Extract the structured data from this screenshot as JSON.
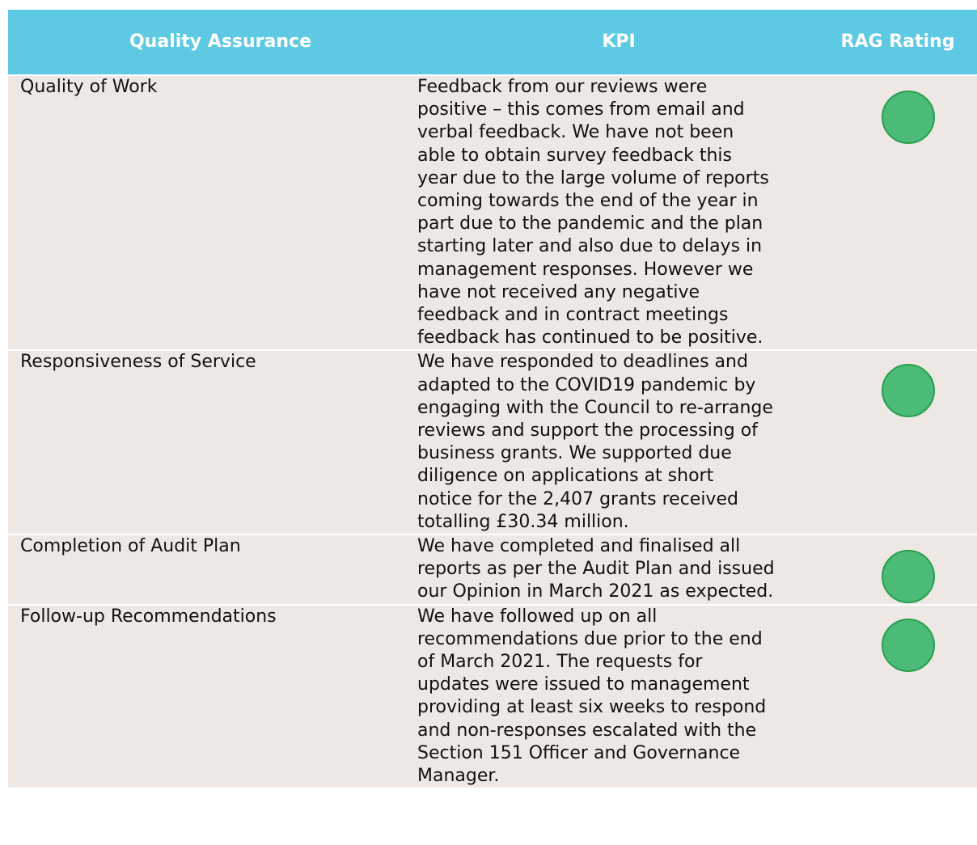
{
  "table": {
    "header": [
      "Quality Assurance",
      "KPI",
      "RAG Rating"
    ],
    "rows": [
      {
        "measure": "Quality of Work",
        "kpi": [
          "Feedback from our reviews were",
          "positive – this comes from email and",
          "verbal feedback. We have not been",
          "able to obtain survey feedback this",
          "year due to the large volume of reports",
          "coming towards the end of the year in",
          "part due to the pandemic and the plan",
          "starting later and also due to delays in",
          "management responses. However we",
          "have not received any negative",
          "feedback and in contract meetings",
          "feedback has continued to be positive."
        ]
      },
      {
        "measure": "Responsiveness of Service",
        "kpi": [
          "We have responded to deadlines and",
          "adapted to the COVID19 pandemic by",
          "engaging with the Council to re-arrange",
          "reviews and support the processing of",
          "business grants. We supported due",
          "diligence on applications at short",
          "notice for the 2,407 grants received",
          "totalling £30.34 million."
        ]
      },
      {
        "measure": "Completion of Audit Plan",
        "kpi": [
          "We have completed and finalised all",
          "reports as per the Audit Plan and issued",
          "our Opinion in March 2021 as expected."
        ]
      },
      {
        "measure": "Follow-up Recommendations",
        "kpi": [
          "We have followed up on all",
          "recommendations due prior to the end",
          "of March 2021. The requests for",
          "updates were issued to management",
          "providing at least six weeks to respond",
          "and non-responses escalated with the",
          "Section 151 Officer and Governance",
          "Manager."
        ]
      }
    ]
  }
}
